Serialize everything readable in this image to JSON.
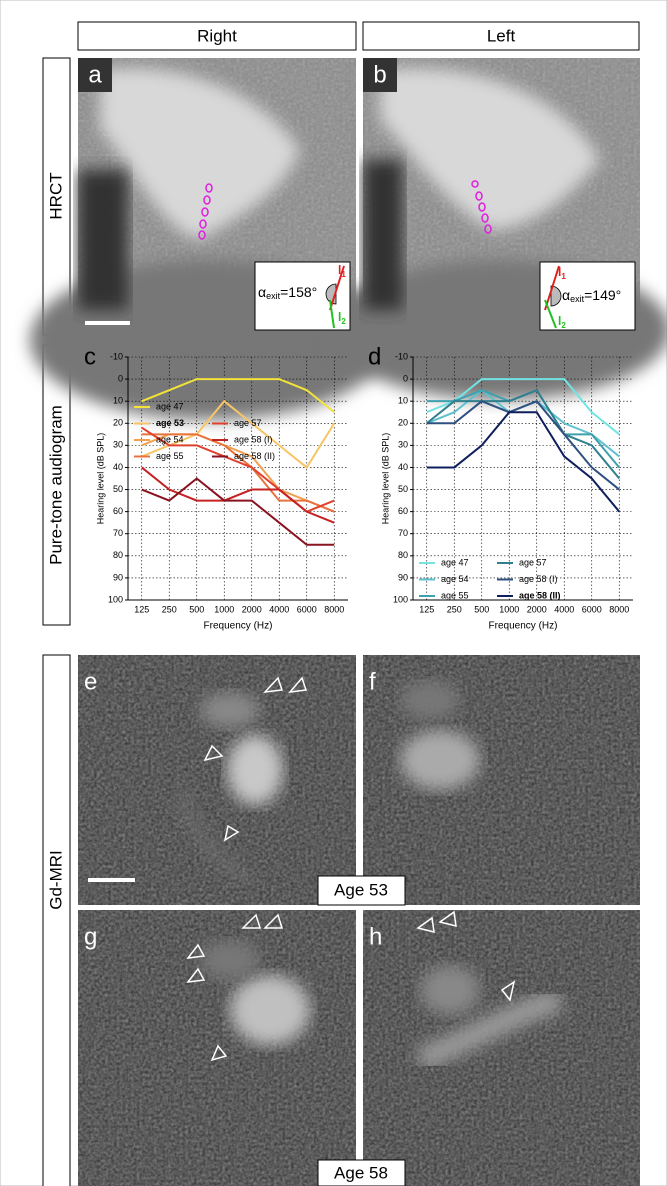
{
  "header": {
    "columns": [
      "Right",
      "Left"
    ],
    "rows": [
      "HRCT",
      "Pure-tone audiogram",
      "Gd-MRI"
    ]
  },
  "panel_labels": [
    "a",
    "b",
    "c",
    "d",
    "e",
    "f",
    "g",
    "h"
  ],
  "hrct": {
    "right_angle": {
      "symbol": "α",
      "subscript": "exit",
      "value": "=158°"
    },
    "left_angle": {
      "symbol": "α",
      "subscript": "exit",
      "value": "=149°"
    },
    "lines": [
      {
        "text": "l",
        "subscript": "1"
      },
      {
        "text": "l",
        "subscript": "2"
      }
    ]
  },
  "mri": {
    "age_labels": [
      "Age 53",
      "Age 58"
    ]
  },
  "chart_data": [
    {
      "type": "line",
      "x_label": "Frequency (Hz)",
      "y_label": "Hearing level (dB SPL)",
      "categories": [
        "125",
        "250",
        "500",
        "1000",
        "2000",
        "4000",
        "6000",
        "8000"
      ],
      "ylim": [
        -10,
        100
      ],
      "y_inverted": true,
      "yticks": [
        -10,
        0,
        10,
        20,
        30,
        40,
        50,
        60,
        70,
        80,
        90,
        100
      ],
      "grid": true,
      "legend": "center left",
      "bold_series": 1,
      "series": [
        {
          "name": "age 47",
          "color": "#f2e23a",
          "values": [
            10,
            5,
            0,
            0,
            0,
            0,
            5,
            15
          ]
        },
        {
          "name": "age 53",
          "color": "#f7c565",
          "values": [
            35,
            30,
            25,
            10,
            20,
            30,
            40,
            20
          ]
        },
        {
          "name": "age 54",
          "color": "#f2a04e",
          "values": [
            30,
            25,
            25,
            30,
            35,
            50,
            55,
            60
          ]
        },
        {
          "name": "age 55",
          "color": "#e9733f",
          "values": [
            25,
            25,
            25,
            30,
            40,
            55,
            55,
            60
          ]
        },
        {
          "name": "age 57",
          "color": "#e0402e",
          "values": [
            22,
            30,
            30,
            35,
            40,
            50,
            60,
            55
          ]
        },
        {
          "name": "age 58 (I)",
          "color": "#c42222",
          "values": [
            40,
            50,
            55,
            55,
            50,
            50,
            60,
            65
          ]
        },
        {
          "name": "age 58 (II)",
          "color": "#8a1320",
          "values": [
            50,
            55,
            45,
            55,
            55,
            65,
            75,
            75
          ]
        }
      ]
    },
    {
      "type": "line",
      "x_label": "Frequency (Hz)",
      "y_label": "Hearing level (dB SPL)",
      "categories": [
        "125",
        "250",
        "500",
        "1000",
        "2000",
        "4000",
        "6000",
        "8000"
      ],
      "ylim": [
        -10,
        100
      ],
      "y_inverted": true,
      "yticks": [
        -10,
        0,
        10,
        20,
        30,
        40,
        50,
        60,
        70,
        80,
        90,
        100
      ],
      "grid": true,
      "legend": "lower left",
      "bold_series": 5,
      "series": [
        {
          "name": "age 47",
          "color": "#72e4e4",
          "values": [
            15,
            10,
            0,
            0,
            0,
            0,
            15,
            25
          ]
        },
        {
          "name": "age 54",
          "color": "#5fc1cf",
          "values": [
            20,
            15,
            5,
            15,
            10,
            20,
            25,
            35
          ]
        },
        {
          "name": "age 55",
          "color": "#3fa1ae",
          "values": [
            10,
            10,
            5,
            10,
            5,
            25,
            25,
            40
          ]
        },
        {
          "name": "age 57",
          "color": "#2f7f8e",
          "values": [
            20,
            10,
            10,
            10,
            5,
            25,
            30,
            45
          ]
        },
        {
          "name": "age 58 (I)",
          "color": "#2f5080",
          "values": [
            20,
            20,
            10,
            15,
            10,
            25,
            40,
            50
          ]
        },
        {
          "name": "age 58 (II)",
          "color": "#0f1f5e",
          "values": [
            40,
            40,
            30,
            15,
            15,
            35,
            45,
            60
          ]
        }
      ]
    }
  ]
}
